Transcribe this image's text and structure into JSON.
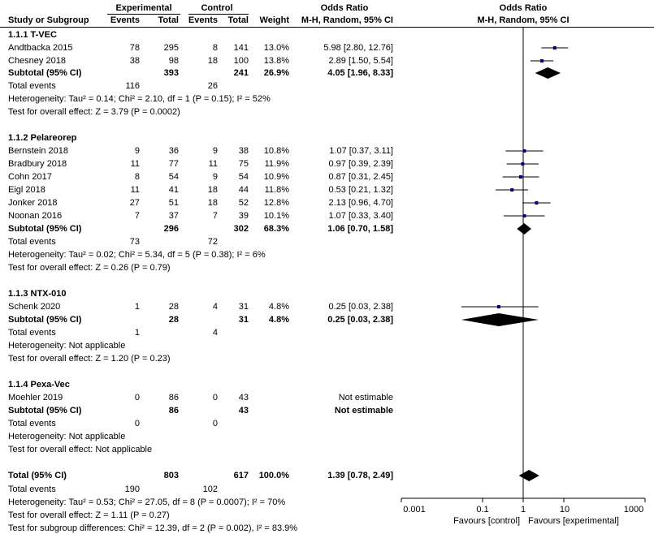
{
  "header": {
    "group1": "Experimental",
    "group2": "Control",
    "or_left": "Odds Ratio",
    "or_right": "Odds Ratio",
    "col_study": "Study or Subgroup",
    "col_events1": "Events",
    "col_total1": "Total",
    "col_events2": "Events",
    "col_total2": "Total",
    "col_weight": "Weight",
    "col_method_left": "M-H, Random, 95% CI",
    "col_method_right": "M-H, Random, 95% CI"
  },
  "subgroups": [
    {
      "title": "1.1.1 T-VEC",
      "studies": [
        {
          "name": "Andtbacka 2015",
          "e1": "78",
          "n1": "295",
          "e2": "8",
          "n2": "141",
          "weight": "13.0%",
          "ci": "5.98 [2.80, 12.76]"
        },
        {
          "name": "Chesney 2018",
          "e1": "38",
          "n1": "98",
          "e2": "18",
          "n2": "100",
          "weight": "13.8%",
          "ci": "2.89 [1.50, 5.54]"
        }
      ],
      "subtotal": {
        "label": "Subtotal (95% CI)",
        "n1": "393",
        "n2": "241",
        "weight": "26.9%",
        "ci": "4.05 [1.96, 8.33]"
      },
      "total_events": {
        "label": "Total events",
        "e1": "116",
        "e2": "26"
      },
      "heterogeneity": "Heterogeneity: Tau² = 0.14; Chi² = 2.10, df = 1 (P = 0.15); I² = 52%",
      "overall": "Test for overall effect: Z = 3.79 (P = 0.0002)"
    },
    {
      "title": "1.1.2 Pelareorep",
      "studies": [
        {
          "name": "Bernstein 2018",
          "e1": "9",
          "n1": "36",
          "e2": "9",
          "n2": "38",
          "weight": "10.8%",
          "ci": "1.07 [0.37, 3.11]"
        },
        {
          "name": "Bradbury 2018",
          "e1": "11",
          "n1": "77",
          "e2": "11",
          "n2": "75",
          "weight": "11.9%",
          "ci": "0.97 [0.39, 2.39]"
        },
        {
          "name": "Cohn 2017",
          "e1": "8",
          "n1": "54",
          "e2": "9",
          "n2": "54",
          "weight": "10.9%",
          "ci": "0.87 [0.31, 2.45]"
        },
        {
          "name": "Eigl 2018",
          "e1": "11",
          "n1": "41",
          "e2": "18",
          "n2": "44",
          "weight": "11.8%",
          "ci": "0.53 [0.21, 1.32]"
        },
        {
          "name": "Jonker 2018",
          "e1": "27",
          "n1": "51",
          "e2": "18",
          "n2": "52",
          "weight": "12.8%",
          "ci": "2.13 [0.96, 4.70]"
        },
        {
          "name": "Noonan 2016",
          "e1": "7",
          "n1": "37",
          "e2": "7",
          "n2": "39",
          "weight": "10.1%",
          "ci": "1.07 [0.33, 3.40]"
        }
      ],
      "subtotal": {
        "label": "Subtotal (95% CI)",
        "n1": "296",
        "n2": "302",
        "weight": "68.3%",
        "ci": "1.06 [0.70, 1.58]"
      },
      "total_events": {
        "label": "Total events",
        "e1": "73",
        "e2": "72"
      },
      "heterogeneity": "Heterogeneity: Tau² = 0.02; Chi² = 5.34, df = 5 (P = 0.38); I² = 6%",
      "overall": "Test for overall effect: Z = 0.26 (P = 0.79)"
    },
    {
      "title": "1.1.3 NTX-010",
      "studies": [
        {
          "name": "Schenk 2020",
          "e1": "1",
          "n1": "28",
          "e2": "4",
          "n2": "31",
          "weight": "4.8%",
          "ci": "0.25 [0.03, 2.38]"
        }
      ],
      "subtotal": {
        "label": "Subtotal (95% CI)",
        "n1": "28",
        "n2": "31",
        "weight": "4.8%",
        "ci": "0.25 [0.03, 2.38]"
      },
      "total_events": {
        "label": "Total events",
        "e1": "1",
        "e2": "4"
      },
      "heterogeneity": "Heterogeneity: Not applicable",
      "overall": "Test for overall effect: Z = 1.20 (P = 0.23)"
    },
    {
      "title": "1.1.4 Pexa-Vec",
      "studies": [
        {
          "name": "Moehler 2019",
          "e1": "0",
          "n1": "86",
          "e2": "0",
          "n2": "43",
          "weight": "",
          "ci": "Not estimable"
        }
      ],
      "subtotal": {
        "label": "Subtotal (95% CI)",
        "n1": "86",
        "n2": "43",
        "weight": "",
        "ci": "Not estimable"
      },
      "total_events": {
        "label": "Total events",
        "e1": "0",
        "e2": "0"
      },
      "heterogeneity": "Heterogeneity: Not applicable",
      "overall": "Test for overall effect: Not applicable"
    }
  ],
  "total": {
    "label": "Total (95% CI)",
    "n1": "803",
    "n2": "617",
    "weight": "100.0%",
    "ci": "1.39 [0.78, 2.49]"
  },
  "total_events": {
    "label": "Total events",
    "e1": "190",
    "e2": "102"
  },
  "heterogeneity": "Heterogeneity: Tau² = 0.53; Chi² = 27.05, df = 8 (P = 0.0007); I² = 70%",
  "overall": "Test for overall effect: Z = 1.11 (P = 0.27)",
  "subgroup_diff": "Test for subgroup differences: Chi² = 12.39, df = 2 (P = 0.002), I² = 83.9%",
  "axis": {
    "ticks": [
      "0.001",
      "0.1",
      "1",
      "10",
      "1000"
    ],
    "favours_left": "Favours [control]",
    "favours_right": "Favours [experimental]"
  },
  "chart_data": {
    "type": "forest",
    "x_scale": "log",
    "xlim": [
      0.001,
      1000
    ],
    "reference_line": 1,
    "studies": [
      {
        "name": "Andtbacka 2015",
        "or": 5.98,
        "lo": 2.8,
        "hi": 12.76,
        "weight": 13.0
      },
      {
        "name": "Chesney 2018",
        "or": 2.89,
        "lo": 1.5,
        "hi": 5.54,
        "weight": 13.8
      },
      {
        "name": "Bernstein 2018",
        "or": 1.07,
        "lo": 0.37,
        "hi": 3.11,
        "weight": 10.8
      },
      {
        "name": "Bradbury 2018",
        "or": 0.97,
        "lo": 0.39,
        "hi": 2.39,
        "weight": 11.9
      },
      {
        "name": "Cohn 2017",
        "or": 0.87,
        "lo": 0.31,
        "hi": 2.45,
        "weight": 10.9
      },
      {
        "name": "Eigl 2018",
        "or": 0.53,
        "lo": 0.21,
        "hi": 1.32,
        "weight": 11.8
      },
      {
        "name": "Jonker 2018",
        "or": 2.13,
        "lo": 0.96,
        "hi": 4.7,
        "weight": 12.8
      },
      {
        "name": "Noonan 2016",
        "or": 1.07,
        "lo": 0.33,
        "hi": 3.4,
        "weight": 10.1
      },
      {
        "name": "Schenk 2020",
        "or": 0.25,
        "lo": 0.03,
        "hi": 2.38,
        "weight": 4.8
      }
    ],
    "diamonds": [
      {
        "name": "Subtotal 1.1.1 T-VEC",
        "or": 4.05,
        "lo": 1.96,
        "hi": 8.33
      },
      {
        "name": "Subtotal 1.1.2 Pelareorep",
        "or": 1.06,
        "lo": 0.7,
        "hi": 1.58
      },
      {
        "name": "Subtotal 1.1.3 NTX-010",
        "or": 0.25,
        "lo": 0.03,
        "hi": 2.38
      },
      {
        "name": "Total",
        "or": 1.39,
        "lo": 0.78,
        "hi": 2.49
      }
    ],
    "colors": {
      "marker": "#000080",
      "line": "#000000",
      "diamond": "#000000"
    }
  }
}
